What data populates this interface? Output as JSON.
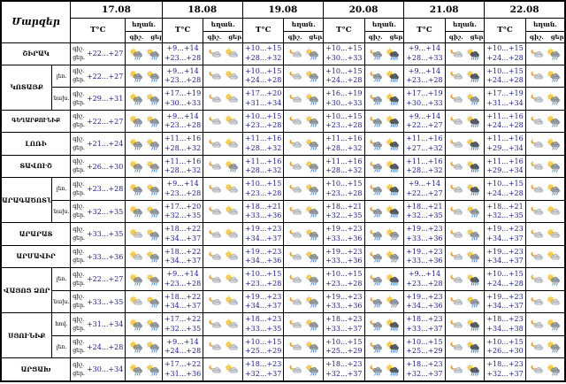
{
  "header": {
    "region_label": "Մարզեր",
    "t_label": "T°C",
    "weather_label": "եղան.",
    "night_label": "գիշ.",
    "day_label": "ցեր.",
    "dates": [
      "17.08",
      "18.08",
      "19.08",
      "20.08",
      "21.08",
      "22.08"
    ]
  },
  "icon_legend": {
    "sc": "sun-cloud-icon",
    "sr": "sun-rain-cloud-icon",
    "st": "storm-rain-cloud-icon",
    "mc": "moon-cloud-icon",
    "mr": "moon-rain-cloud-icon"
  },
  "colors": {
    "temp_text": "#1c1c8f",
    "border": "#000000",
    "background": "#ffffff",
    "sun": "#ffd23e",
    "moon": "#f09d1e",
    "rain": "#1e6fd0"
  },
  "regions": [
    {
      "name": "ՇԻՐԱԿ",
      "rows": [
        {
          "zone": "",
          "cells": [
            {
              "n": "",
              "d": "+22...+27",
              "i": [
                "sr",
                "sr"
              ]
            },
            {
              "n": "+9...+14",
              "d": "+23...+28",
              "i": [
                "mc",
                "sc"
              ]
            },
            {
              "n": "+10...+15",
              "d": "+28...+32",
              "i": [
                "mc",
                "sr"
              ]
            },
            {
              "n": "+10...+15",
              "d": "+30...+33",
              "i": [
                "mr",
                "st"
              ]
            },
            {
              "n": "+9...+14",
              "d": "+28...+33",
              "i": [
                "mc",
                "st"
              ]
            },
            {
              "n": "+10...+15",
              "d": "+24...+28",
              "i": [
                "mc",
                "sr"
              ]
            }
          ]
        }
      ]
    },
    {
      "name": "ԿՈՏԱՅՔ",
      "rows": [
        {
          "zone": "լեռ.",
          "cells": [
            {
              "n": "",
              "d": "+22...+27",
              "i": [
                "sr",
                "sr"
              ]
            },
            {
              "n": "+9...+14",
              "d": "+23...+28",
              "i": [
                "mc",
                "sc"
              ]
            },
            {
              "n": "+10...+15",
              "d": "+24...+28",
              "i": [
                "mc",
                "sr"
              ]
            },
            {
              "n": "+10...+15",
              "d": "+24...+28",
              "i": [
                "mr",
                "st"
              ]
            },
            {
              "n": "+9...+14",
              "d": "+23...+28",
              "i": [
                "mc",
                "st"
              ]
            },
            {
              "n": "+10...+15",
              "d": "+24...+28",
              "i": [
                "mc",
                "sr"
              ]
            }
          ]
        },
        {
          "zone": "նախ.",
          "cells": [
            {
              "n": "",
              "d": "+29...+31",
              "i": [
                "sr",
                "sr"
              ]
            },
            {
              "n": "+17...+19",
              "d": "+30...+33",
              "i": [
                "mc",
                "sc"
              ]
            },
            {
              "n": "+17...+20",
              "d": "+31...+34",
              "i": [
                "mc",
                "sr"
              ]
            },
            {
              "n": "+16...+19",
              "d": "+30...+33",
              "i": [
                "mr",
                "st"
              ]
            },
            {
              "n": "+17...+19",
              "d": "+30...+33",
              "i": [
                "mc",
                "sr"
              ]
            },
            {
              "n": "+17...+19",
              "d": "+31...+34",
              "i": [
                "mc",
                "sr"
              ]
            }
          ]
        }
      ]
    },
    {
      "name": "ԳԵՂԱՐՔՈՒՆԻՔ",
      "rows": [
        {
          "zone": "",
          "cells": [
            {
              "n": "",
              "d": "+22...+27",
              "i": [
                "sr",
                "sr"
              ]
            },
            {
              "n": "+9...+14",
              "d": "+23...+28",
              "i": [
                "mc",
                "sc"
              ]
            },
            {
              "n": "+10...+15",
              "d": "+23...+28",
              "i": [
                "mc",
                "sr"
              ]
            },
            {
              "n": "+10...+15",
              "d": "+23...+28",
              "i": [
                "mr",
                "st"
              ]
            },
            {
              "n": "+9...+14",
              "d": "+22...+27",
              "i": [
                "mc",
                "st"
              ]
            },
            {
              "n": "+11...+16",
              "d": "+24...+28",
              "i": [
                "mc",
                "sr"
              ]
            }
          ]
        }
      ]
    },
    {
      "name": "ԼՈՌԻ",
      "rows": [
        {
          "zone": "",
          "cells": [
            {
              "n": "",
              "d": "+21...+24",
              "i": [
                "sr",
                "sr"
              ]
            },
            {
              "n": "+11...+16",
              "d": "+28...+32",
              "i": [
                "mc",
                "sc"
              ]
            },
            {
              "n": "+11...+16",
              "d": "+28...+32",
              "i": [
                "mc",
                "sr"
              ]
            },
            {
              "n": "+11...+16",
              "d": "+28...+32",
              "i": [
                "mr",
                "st"
              ]
            },
            {
              "n": "+11...+16",
              "d": "+27...+32",
              "i": [
                "mc",
                "st"
              ]
            },
            {
              "n": "+11...+16",
              "d": "+29...+34",
              "i": [
                "mc",
                "sr"
              ]
            }
          ]
        }
      ]
    },
    {
      "name": "ՏԱՎՈՒՇ",
      "rows": [
        {
          "zone": "",
          "cells": [
            {
              "n": "",
              "d": "+26...+30",
              "i": [
                "sr",
                "sr"
              ]
            },
            {
              "n": "+11...+16",
              "d": "+28...+32",
              "i": [
                "mc",
                "sr"
              ]
            },
            {
              "n": "+11...+16",
              "d": "+28...+32",
              "i": [
                "mc",
                "sr"
              ]
            },
            {
              "n": "+11...+16",
              "d": "+28...+32",
              "i": [
                "mr",
                "st"
              ]
            },
            {
              "n": "+11...+16",
              "d": "+28...+32",
              "i": [
                "mc",
                "st"
              ]
            },
            {
              "n": "+11...+16",
              "d": "+29...+34",
              "i": [
                "mc",
                "sr"
              ]
            }
          ]
        }
      ]
    },
    {
      "name": "ԱՐԱԳԱԾՈՏՆ",
      "rows": [
        {
          "zone": "լեռ.",
          "cells": [
            {
              "n": "",
              "d": "+23...+28",
              "i": [
                "sr",
                "sr"
              ]
            },
            {
              "n": "+9...+14",
              "d": "+23...+28",
              "i": [
                "mc",
                "sc"
              ]
            },
            {
              "n": "+10...+15",
              "d": "+23...+28",
              "i": [
                "mc",
                "sr"
              ]
            },
            {
              "n": "+10...+15",
              "d": "+23...+28",
              "i": [
                "mr",
                "st"
              ]
            },
            {
              "n": "+9...+14",
              "d": "+22...+27",
              "i": [
                "mc",
                "st"
              ]
            },
            {
              "n": "+10...+15",
              "d": "+24...+28",
              "i": [
                "mc",
                "sr"
              ]
            }
          ]
        },
        {
          "zone": "նախ.",
          "cells": [
            {
              "n": "",
              "d": "+32...+35",
              "i": [
                "sr",
                "sr"
              ]
            },
            {
              "n": "+17...+20",
              "d": "+32...+35",
              "i": [
                "mc",
                "sc"
              ]
            },
            {
              "n": "+18...+21",
              "d": "+33...+36",
              "i": [
                "mc",
                "sr"
              ]
            },
            {
              "n": "+18...+21",
              "d": "+32...+35",
              "i": [
                "mr",
                "st"
              ]
            },
            {
              "n": "+18...+21",
              "d": "+32...+35",
              "i": [
                "mc",
                "sr"
              ]
            },
            {
              "n": "+18...+21",
              "d": "+32...+35",
              "i": [
                "mc",
                "sc"
              ]
            }
          ]
        }
      ]
    },
    {
      "name": "ԱՐԱՐԱՏ",
      "rows": [
        {
          "zone": "",
          "cells": [
            {
              "n": "",
              "d": "+33...+35",
              "i": [
                "sc",
                "sr"
              ]
            },
            {
              "n": "+18...+22",
              "d": "+34...+37",
              "i": [
                "mc",
                "sc"
              ]
            },
            {
              "n": "+19...+23",
              "d": "+34...+37",
              "i": [
                "mc",
                "sr"
              ]
            },
            {
              "n": "+19...+23",
              "d": "+33...+36",
              "i": [
                "mr",
                "sr"
              ]
            },
            {
              "n": "+19...+23",
              "d": "+33...+36",
              "i": [
                "mc",
                "sr"
              ]
            },
            {
              "n": "+19...+23",
              "d": "+34...+37",
              "i": [
                "mc",
                "sc"
              ]
            }
          ]
        }
      ]
    },
    {
      "name": "ԱՐՄԱՎԻՐ",
      "rows": [
        {
          "zone": "",
          "cells": [
            {
              "n": "",
              "d": "+33...+36",
              "i": [
                "sc",
                "sr"
              ]
            },
            {
              "n": "+18...+22",
              "d": "+34...+37",
              "i": [
                "mc",
                "sc"
              ]
            },
            {
              "n": "+19...+23",
              "d": "+34...+36",
              "i": [
                "mc",
                "sr"
              ]
            },
            {
              "n": "+19...+23",
              "d": "+33...+36",
              "i": [
                "mr",
                "sr"
              ]
            },
            {
              "n": "+19...+23",
              "d": "+33...+36",
              "i": [
                "mc",
                "sr"
              ]
            },
            {
              "n": "+19...+23",
              "d": "+34...+37",
              "i": [
                "mc",
                "sc"
              ]
            }
          ]
        }
      ]
    },
    {
      "name": "ՎԱՅՈՑ ՁՈՐ",
      "rows": [
        {
          "zone": "լեռ.",
          "cells": [
            {
              "n": "",
              "d": "+22...+27",
              "i": [
                "sr",
                "sr"
              ]
            },
            {
              "n": "+9...+14",
              "d": "+23...+28",
              "i": [
                "mc",
                "sc"
              ]
            },
            {
              "n": "+10...+15",
              "d": "+23...+28",
              "i": [
                "mc",
                "sr"
              ]
            },
            {
              "n": "+10...+15",
              "d": "+23...+28",
              "i": [
                "mr",
                "st"
              ]
            },
            {
              "n": "+9...+14",
              "d": "+23...+28",
              "i": [
                "mc",
                "st"
              ]
            },
            {
              "n": "+10...+15",
              "d": "+24...+28",
              "i": [
                "mc",
                "sr"
              ]
            }
          ]
        },
        {
          "zone": "նախ.",
          "cells": [
            {
              "n": "",
              "d": "+33...+35",
              "i": [
                "sc",
                "sr"
              ]
            },
            {
              "n": "+18...+22",
              "d": "+34...+37",
              "i": [
                "mc",
                "sc"
              ]
            },
            {
              "n": "+19...+23",
              "d": "+34...+37",
              "i": [
                "mc",
                "sr"
              ]
            },
            {
              "n": "+19...+23",
              "d": "+33...+36",
              "i": [
                "mr",
                "sr"
              ]
            },
            {
              "n": "+19...+23",
              "d": "+34...+36",
              "i": [
                "mc",
                "sr"
              ]
            },
            {
              "n": "+19...+23",
              "d": "+34...+37",
              "i": [
                "mc",
                "sc"
              ]
            }
          ]
        }
      ]
    },
    {
      "name": "ՍՅՈՒՆԻՔ",
      "rows": [
        {
          "zone": "հով.",
          "cells": [
            {
              "n": "",
              "d": "+31...+34",
              "i": [
                "sr",
                "sr"
              ]
            },
            {
              "n": "+17...+22",
              "d": "+32...+35",
              "i": [
                "mc",
                "sc"
              ]
            },
            {
              "n": "+18...+23",
              "d": "+33...+35",
              "i": [
                "mc",
                "sr"
              ]
            },
            {
              "n": "+18...+23",
              "d": "+33...+37",
              "i": [
                "mr",
                "st"
              ]
            },
            {
              "n": "+18...+23",
              "d": "+33...+37",
              "i": [
                "mc",
                "st"
              ]
            },
            {
              "n": "+18...+23",
              "d": "+34...+38",
              "i": [
                "mc",
                "sr"
              ]
            }
          ]
        },
        {
          "zone": "լեռ.",
          "cells": [
            {
              "n": "",
              "d": "+24...+28",
              "i": [
                "sr",
                "sr"
              ]
            },
            {
              "n": "+9...+14",
              "d": "+24...+28",
              "i": [
                "mc",
                "sc"
              ]
            },
            {
              "n": "+10...+15",
              "d": "+25...+29",
              "i": [
                "mc",
                "sr"
              ]
            },
            {
              "n": "+10...+15",
              "d": "+25...+29",
              "i": [
                "mr",
                "st"
              ]
            },
            {
              "n": "+10...+15",
              "d": "+25...+29",
              "i": [
                "mc",
                "st"
              ]
            },
            {
              "n": "+10...+15",
              "d": "+26...+30",
              "i": [
                "mc",
                "sr"
              ]
            }
          ]
        }
      ]
    },
    {
      "name": "ԱՐՑԱԽ",
      "rows": [
        {
          "zone": "",
          "cells": [
            {
              "n": "",
              "d": "+30...+34",
              "i": [
                "sr",
                "sr"
              ]
            },
            {
              "n": "+17...+22",
              "d": "+31...+36",
              "i": [
                "mc",
                "sc"
              ]
            },
            {
              "n": "+18...+23",
              "d": "+32...+37",
              "i": [
                "mc",
                "sr"
              ]
            },
            {
              "n": "+18...+23",
              "d": "+32...+37",
              "i": [
                "mr",
                "st"
              ]
            },
            {
              "n": "+18...+23",
              "d": "+32...+37",
              "i": [
                "mc",
                "st"
              ]
            },
            {
              "n": "+18...+23",
              "d": "+32...+37",
              "i": [
                "mc",
                "sr"
              ]
            }
          ]
        }
      ]
    }
  ]
}
